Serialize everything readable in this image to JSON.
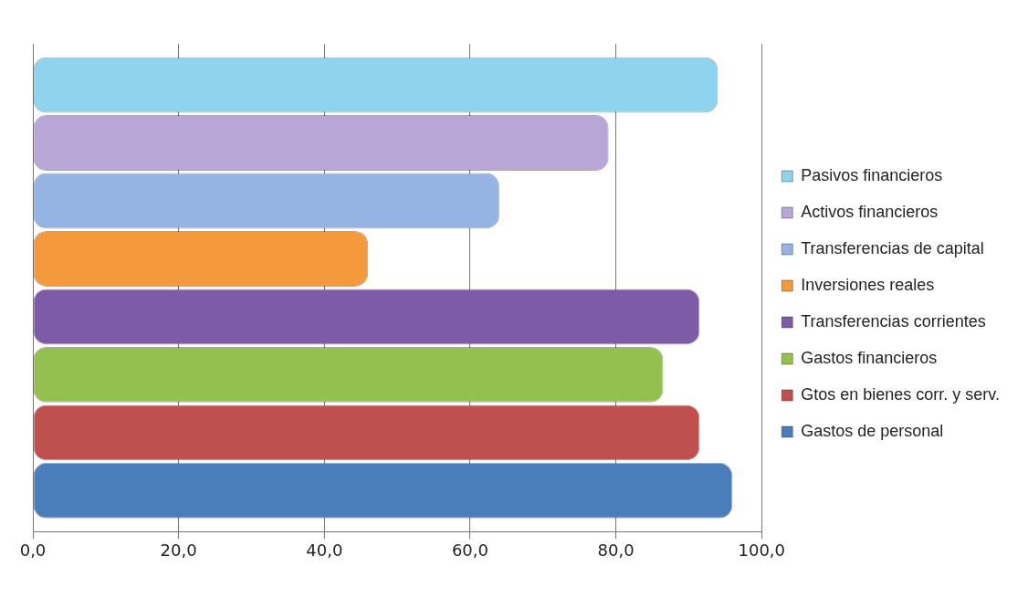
{
  "chart_data": {
    "type": "bar",
    "orientation": "horizontal",
    "categories": [
      null
    ],
    "series": [
      {
        "name": "Pasivos financieros",
        "color": "#8fd3ee",
        "values": [
          94
        ]
      },
      {
        "name": "Activos financieros",
        "color": "#b8a6d6",
        "values": [
          79
        ]
      },
      {
        "name": "Transferencias de capital",
        "color": "#95b3e3",
        "values": [
          64
        ]
      },
      {
        "name": "Inversiones reales",
        "color": "#f59a3c",
        "values": [
          46
        ]
      },
      {
        "name": "Transferencias corrientes",
        "color": "#7e5ba6",
        "values": [
          91.5
        ]
      },
      {
        "name": "Gastos financieros",
        "color": "#94c050",
        "values": [
          86.5
        ]
      },
      {
        "name": "Gtos en bienes corr. y serv.",
        "color": "#c0504d",
        "values": [
          91.5
        ]
      },
      {
        "name": "Gastos de personal",
        "color": "#4a7ebb",
        "values": [
          96
        ]
      }
    ],
    "xlim": [
      0,
      100
    ],
    "xticks": [
      {
        "value": 0,
        "label": "0,0"
      },
      {
        "value": 20,
        "label": "20,0"
      },
      {
        "value": 40,
        "label": "40,0"
      },
      {
        "value": 60,
        "label": "60,0"
      },
      {
        "value": 80,
        "label": "80,0"
      },
      {
        "value": 100,
        "label": "100,0"
      }
    ],
    "grid": "x",
    "legend": "right",
    "tick_labels": "x"
  }
}
